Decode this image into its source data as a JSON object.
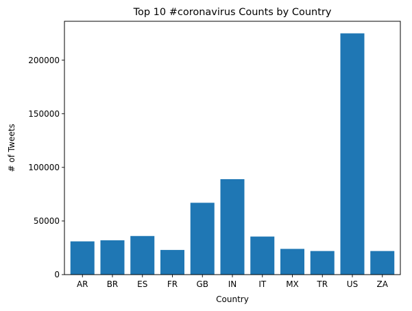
{
  "chart_data": {
    "type": "bar",
    "title": "Top 10 #coronavirus Counts by Country",
    "xlabel": "Country",
    "ylabel": "# of Tweets",
    "categories": [
      "AR",
      "BR",
      "ES",
      "FR",
      "GB",
      "IN",
      "IT",
      "MX",
      "TR",
      "US",
      "ZA"
    ],
    "values": [
      31000,
      32000,
      36000,
      23000,
      67000,
      89000,
      35500,
      24000,
      22000,
      225000,
      22000
    ],
    "yticks": [
      0,
      50000,
      100000,
      150000,
      200000
    ],
    "ylim": [
      0,
      236250
    ],
    "bar_color": "#1f77b4",
    "grid": false,
    "legend": "none"
  }
}
